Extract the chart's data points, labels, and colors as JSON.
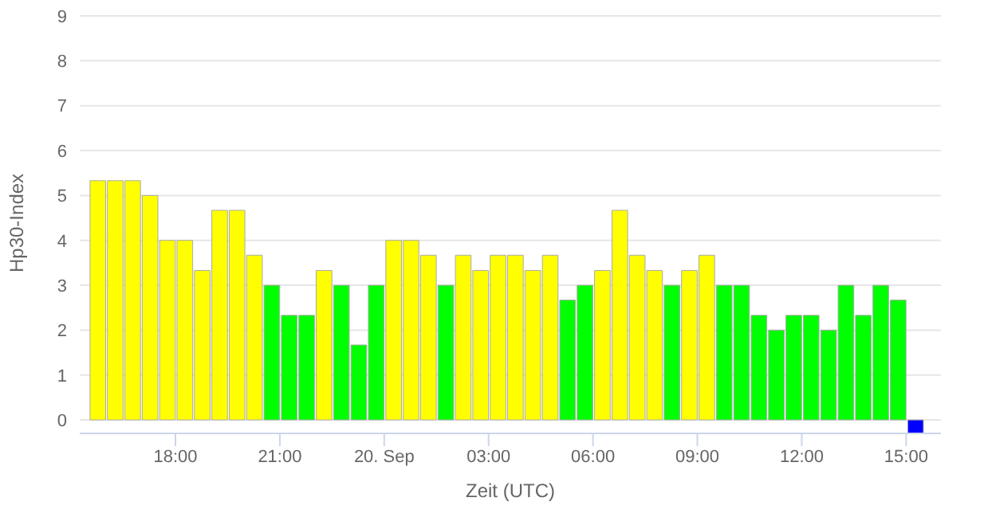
{
  "chart_data": {
    "type": "bar",
    "xlabel": "Zeit (UTC)",
    "ylabel": "Hp30-Index",
    "x": [
      "--09-19T15:45",
      "--09-19T16:15",
      "--09-19T16:45",
      "--09-19T17:15",
      "--09-19T17:45",
      "--09-19T18:15",
      "--09-19T18:45",
      "--09-19T19:15",
      "--09-19T19:45",
      "--09-19T20:15",
      "--09-19T20:45",
      "--09-19T21:15",
      "--09-19T21:45",
      "--09-19T22:15",
      "--09-19T22:45",
      "--09-19T23:15",
      "--09-19T23:45",
      "--09-20T00:15",
      "--09-20T00:45",
      "--09-20T01:15",
      "--09-20T01:45",
      "--09-20T02:15",
      "--09-20T02:45",
      "--09-20T03:15",
      "--09-20T03:45",
      "--09-20T04:15",
      "--09-20T04:45",
      "--09-20T05:15",
      "--09-20T05:45",
      "--09-20T06:15",
      "--09-20T06:45",
      "--09-20T07:15",
      "--09-20T07:45",
      "--09-20T08:15",
      "--09-20T08:45",
      "--09-20T09:15",
      "--09-20T09:45",
      "--09-20T10:15",
      "--09-20T10:45",
      "--09-20T11:15",
      "--09-20T11:45",
      "--09-20T12:15",
      "--09-20T12:45",
      "--09-20T13:15",
      "--09-20T13:45",
      "--09-20T14:15",
      "--09-20T14:45",
      "--09-20T15:15"
    ],
    "values": [
      5.33,
      5.33,
      5.33,
      5,
      4,
      4,
      3.33,
      4.67,
      4.67,
      3.67,
      3,
      2.33,
      2.33,
      3.33,
      3,
      1.67,
      3,
      4,
      4,
      3.67,
      3,
      3.67,
      3.33,
      3.67,
      3.67,
      3.33,
      3.67,
      2.67,
      3,
      3.33,
      4.67,
      3.67,
      3.33,
      3,
      3.33,
      3.67,
      3,
      3,
      2.33,
      2,
      2.33,
      2.33,
      2,
      3,
      2.33,
      3,
      2.67,
      -0.3
    ],
    "colors": [
      "#ffff00",
      "#ffff00",
      "#ffff00",
      "#ffff00",
      "#ffff00",
      "#ffff00",
      "#ffff00",
      "#ffff00",
      "#ffff00",
      "#ffff00",
      "#00ff00",
      "#00ff00",
      "#00ff00",
      "#ffff00",
      "#00ff00",
      "#00ff00",
      "#00ff00",
      "#ffff00",
      "#ffff00",
      "#ffff00",
      "#00ff00",
      "#ffff00",
      "#ffff00",
      "#ffff00",
      "#ffff00",
      "#ffff00",
      "#ffff00",
      "#00ff00",
      "#00ff00",
      "#ffff00",
      "#ffff00",
      "#ffff00",
      "#ffff00",
      "#00ff00",
      "#ffff00",
      "#ffff00",
      "#00ff00",
      "#00ff00",
      "#00ff00",
      "#00ff00",
      "#00ff00",
      "#00ff00",
      "#00ff00",
      "#00ff00",
      "#00ff00",
      "#00ff00",
      "#00ff00",
      "#0000ff"
    ],
    "xlim": [
      "--09-19T15:15",
      "--09-20T16:00"
    ],
    "xticks": [
      {
        "value": "--09-19T18:00",
        "label": "18:00"
      },
      {
        "value": "--09-19T21:00",
        "label": "21:00"
      },
      {
        "value": "--09-20T00:00",
        "label": "20. Sep"
      },
      {
        "value": "--09-20T03:00",
        "label": "03:00"
      },
      {
        "value": "--09-20T06:00",
        "label": "06:00"
      },
      {
        "value": "--09-20T09:00",
        "label": "09:00"
      },
      {
        "value": "--09-20T12:00",
        "label": "12:00"
      },
      {
        "value": "--09-20T15:00",
        "label": "15:00"
      }
    ],
    "ylim": [
      -0.3,
      9
    ],
    "yticks": [
      0,
      1,
      2,
      3,
      4,
      5,
      6,
      7,
      8,
      9
    ],
    "grid": "y",
    "legend": false
  }
}
